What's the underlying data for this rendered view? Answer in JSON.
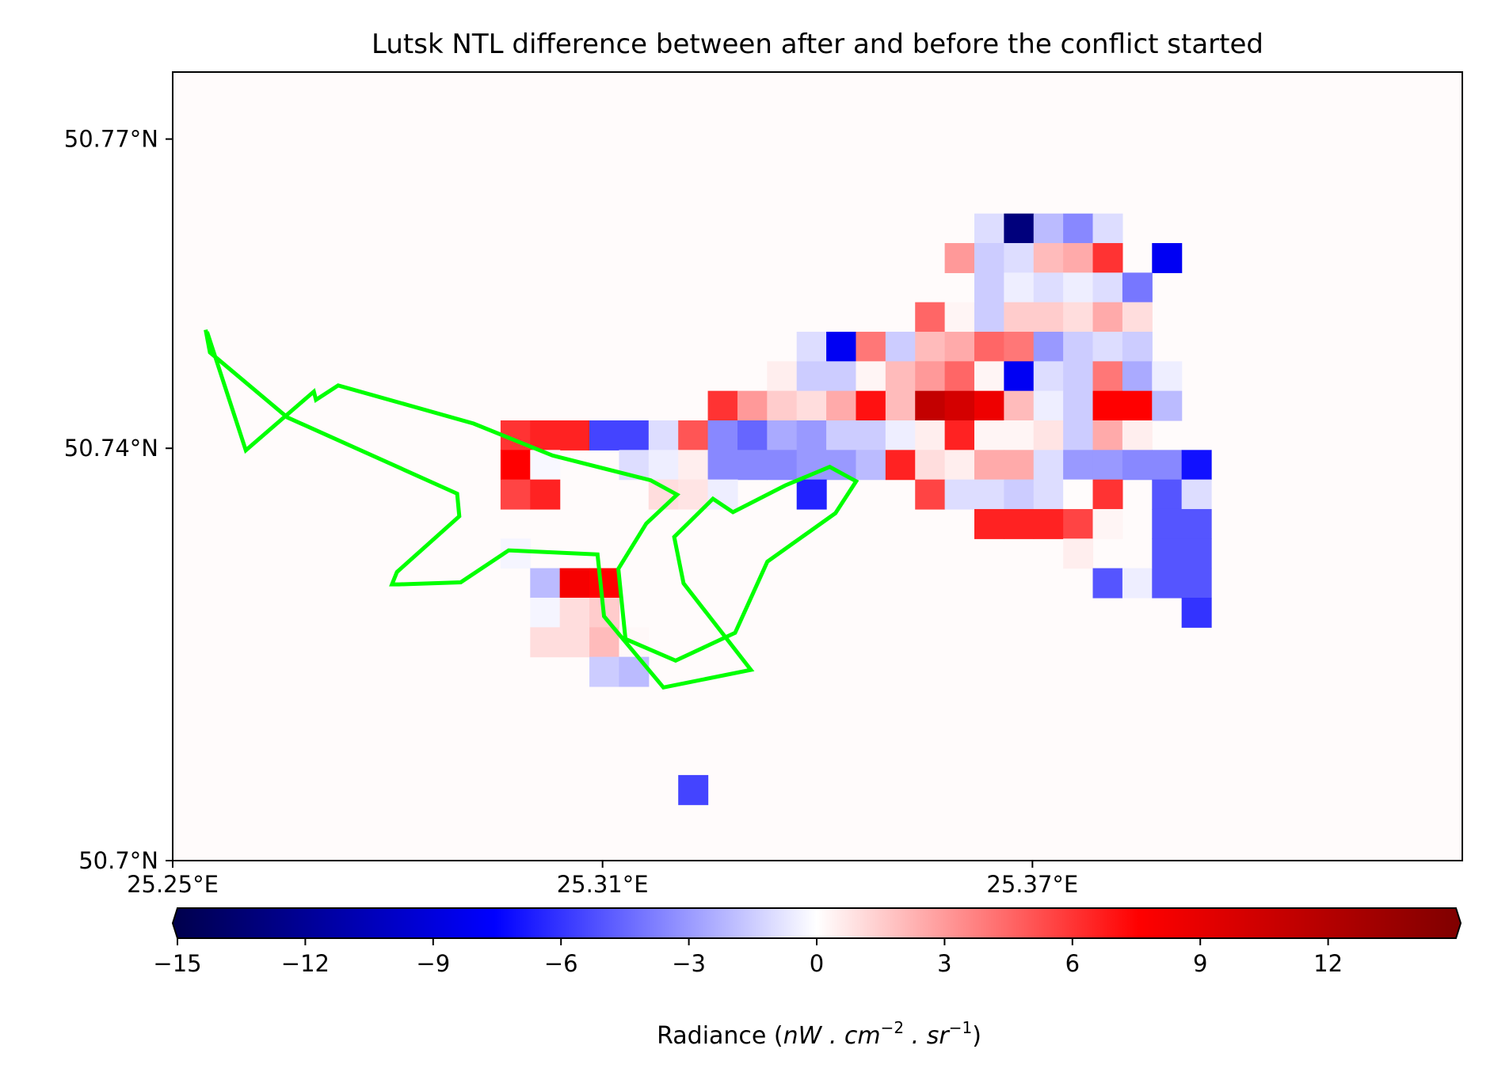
{
  "chart_data": {
    "type": "heatmap",
    "title": "Lutsk NTL difference between after and before the conflict started",
    "xlabel": "",
    "ylabel": "",
    "x_ticks": [
      {
        "value": 25.25,
        "label": "25.25°E"
      },
      {
        "value": 25.31,
        "label": "25.31°E"
      },
      {
        "value": 25.37,
        "label": "25.37°E"
      }
    ],
    "y_ticks": [
      {
        "value": 50.77,
        "label": "50.77°N"
      },
      {
        "value": 50.74,
        "label": "50.74°N"
      },
      {
        "value": 50.7,
        "label": "50.7°N"
      }
    ],
    "xlim": [
      25.25,
      25.43
    ],
    "ylim": [
      50.7,
      50.7765
    ],
    "grid": false,
    "colorbar": {
      "label_prefix": "Radiance (",
      "label_math": "nW . cm",
      "label_sup1": "−2",
      "label_mid": " . sr",
      "label_sup2": "−1",
      "label_suffix": ")",
      "vmin": -15,
      "vmax": 15,
      "extend": "both",
      "colormap": "seismic",
      "ticks": [
        {
          "value": -15,
          "label": "−15"
        },
        {
          "value": -12,
          "label": "−12"
        },
        {
          "value": -9,
          "label": "−9"
        },
        {
          "value": -6,
          "label": "−6"
        },
        {
          "value": -3,
          "label": "−3"
        },
        {
          "value": 0,
          "label": "0"
        },
        {
          "value": 3,
          "label": "3"
        },
        {
          "value": 6,
          "label": "6"
        },
        {
          "value": 9,
          "label": "9"
        },
        {
          "value": 12,
          "label": "12"
        }
      ]
    },
    "grid_cell": {
      "x0": 25.2503,
      "dx": 0.004133,
      "y0": 50.6997,
      "dy": 0.002867
    },
    "cells": [
      [
        27,
        4,
        -1
      ],
      [
        28,
        4,
        -13
      ],
      [
        29,
        4,
        -2
      ],
      [
        30,
        4,
        -3.5
      ],
      [
        31,
        4,
        -1
      ],
      [
        26,
        5,
        3
      ],
      [
        27,
        5,
        -1.5
      ],
      [
        28,
        5,
        -1
      ],
      [
        29,
        5,
        2
      ],
      [
        30,
        5,
        2.5
      ],
      [
        31,
        5,
        6
      ],
      [
        33,
        5,
        -8
      ],
      [
        27,
        6,
        -1.5
      ],
      [
        28,
        6,
        -0.5
      ],
      [
        29,
        6,
        -1
      ],
      [
        30,
        6,
        -0.5
      ],
      [
        31,
        6,
        -1
      ],
      [
        32,
        6,
        -4
      ],
      [
        25,
        7,
        4.5
      ],
      [
        26,
        7,
        0.3
      ],
      [
        27,
        7,
        -1.5
      ],
      [
        28,
        7,
        1.5
      ],
      [
        29,
        7,
        1.5
      ],
      [
        30,
        7,
        1
      ],
      [
        31,
        7,
        2.5
      ],
      [
        32,
        7,
        1
      ],
      [
        21,
        8,
        -1
      ],
      [
        22,
        8,
        -8
      ],
      [
        23,
        8,
        4
      ],
      [
        24,
        8,
        -1.5
      ],
      [
        25,
        8,
        2
      ],
      [
        26,
        8,
        2.5
      ],
      [
        27,
        8,
        4.5
      ],
      [
        28,
        8,
        4
      ],
      [
        29,
        8,
        -3
      ],
      [
        30,
        8,
        -1.5
      ],
      [
        31,
        8,
        -1
      ],
      [
        32,
        8,
        -1.5
      ],
      [
        20,
        9,
        0.5
      ],
      [
        21,
        9,
        -1.5
      ],
      [
        22,
        9,
        -1.5
      ],
      [
        23,
        9,
        0.3
      ],
      [
        24,
        9,
        2
      ],
      [
        25,
        9,
        3
      ],
      [
        26,
        9,
        4.5
      ],
      [
        27,
        9,
        0.3
      ],
      [
        28,
        9,
        -8
      ],
      [
        29,
        9,
        -1
      ],
      [
        30,
        9,
        -1.5
      ],
      [
        31,
        9,
        4
      ],
      [
        32,
        9,
        -2.5
      ],
      [
        33,
        9,
        -0.5
      ],
      [
        18,
        10,
        6
      ],
      [
        19,
        10,
        3
      ],
      [
        20,
        10,
        1.5
      ],
      [
        21,
        10,
        1
      ],
      [
        22,
        10,
        2.5
      ],
      [
        23,
        10,
        7
      ],
      [
        24,
        10,
        2
      ],
      [
        25,
        10,
        11
      ],
      [
        26,
        10,
        10
      ],
      [
        27,
        10,
        8.5
      ],
      [
        28,
        10,
        2
      ],
      [
        29,
        10,
        -0.5
      ],
      [
        30,
        10,
        -1.5
      ],
      [
        31,
        10,
        7.5
      ],
      [
        32,
        10,
        7.5
      ],
      [
        33,
        10,
        -2
      ],
      [
        11,
        11,
        6
      ],
      [
        12,
        11,
        6.5
      ],
      [
        13,
        11,
        6.5
      ],
      [
        14,
        11,
        -5.5
      ],
      [
        15,
        11,
        -5.5
      ],
      [
        16,
        11,
        -1
      ],
      [
        17,
        11,
        5
      ],
      [
        18,
        11,
        -3.5
      ],
      [
        19,
        11,
        -4.5
      ],
      [
        20,
        11,
        -2.5
      ],
      [
        21,
        11,
        -3
      ],
      [
        22,
        11,
        -1.5
      ],
      [
        23,
        11,
        -1.5
      ],
      [
        24,
        11,
        -0.5
      ],
      [
        25,
        11,
        0.5
      ],
      [
        26,
        11,
        6.5
      ],
      [
        27,
        11,
        0.3
      ],
      [
        28,
        11,
        0.3
      ],
      [
        29,
        11,
        0.8
      ],
      [
        30,
        11,
        -1.5
      ],
      [
        31,
        11,
        2.5
      ],
      [
        32,
        11,
        0.5
      ],
      [
        11,
        12,
        7.5
      ],
      [
        12,
        12,
        -0.2
      ],
      [
        15,
        12,
        -1
      ],
      [
        16,
        12,
        -0.5
      ],
      [
        17,
        12,
        0.5
      ],
      [
        18,
        12,
        -3.5
      ],
      [
        19,
        12,
        -3.5
      ],
      [
        20,
        12,
        -3.5
      ],
      [
        21,
        12,
        -3
      ],
      [
        22,
        12,
        -3
      ],
      [
        23,
        12,
        -2
      ],
      [
        24,
        12,
        6.5
      ],
      [
        25,
        12,
        1
      ],
      [
        26,
        12,
        0.5
      ],
      [
        27,
        12,
        2.5
      ],
      [
        28,
        12,
        2.5
      ],
      [
        29,
        12,
        -1
      ],
      [
        30,
        12,
        -3
      ],
      [
        31,
        12,
        -3
      ],
      [
        32,
        12,
        -3.5
      ],
      [
        33,
        12,
        -3.5
      ],
      [
        34,
        12,
        -7
      ],
      [
        11,
        13,
        5.5
      ],
      [
        12,
        13,
        6.5
      ],
      [
        16,
        13,
        1
      ],
      [
        17,
        13,
        0.8
      ],
      [
        18,
        13,
        -0.5
      ],
      [
        21,
        13,
        -6.5
      ],
      [
        25,
        13,
        5.5
      ],
      [
        26,
        13,
        -1
      ],
      [
        27,
        13,
        -1
      ],
      [
        28,
        13,
        -1.5
      ],
      [
        29,
        13,
        -1
      ],
      [
        30,
        13,
        0.1
      ],
      [
        31,
        13,
        6
      ],
      [
        33,
        13,
        -5
      ],
      [
        34,
        13,
        -1
      ],
      [
        27,
        14,
        6.5
      ],
      [
        28,
        14,
        6.5
      ],
      [
        29,
        14,
        6.5
      ],
      [
        30,
        14,
        5.5
      ],
      [
        31,
        14,
        0.3
      ],
      [
        33,
        14,
        -5
      ],
      [
        34,
        14,
        -5
      ],
      [
        11,
        15,
        -0.3
      ],
      [
        30,
        15,
        0.5
      ],
      [
        33,
        15,
        -5
      ],
      [
        34,
        15,
        -5
      ],
      [
        12,
        16,
        -2
      ],
      [
        13,
        16,
        8
      ],
      [
        14,
        16,
        7.5
      ],
      [
        31,
        16,
        -5
      ],
      [
        32,
        16,
        -0.5
      ],
      [
        33,
        16,
        -5
      ],
      [
        34,
        16,
        -5
      ],
      [
        12,
        17,
        -0.3
      ],
      [
        13,
        17,
        1
      ],
      [
        14,
        17,
        1.5
      ],
      [
        34,
        17,
        -6
      ],
      [
        12,
        18,
        1
      ],
      [
        13,
        18,
        1
      ],
      [
        14,
        18,
        2
      ],
      [
        15,
        18,
        0.2
      ],
      [
        14,
        19,
        -1.5
      ],
      [
        15,
        19,
        -2
      ],
      [
        17,
        23,
        -5.5
      ]
    ],
    "boundary_lines": [
      {
        "name": "",
        "color": "#00ff00",
        "points": [
          [
            25.2546,
            50.7515
          ],
          [
            25.2552,
            50.7493
          ],
          [
            25.266,
            50.743
          ],
          [
            25.2897,
            50.7356
          ],
          [
            25.29,
            50.7334
          ],
          [
            25.2813,
            50.728
          ],
          [
            25.2806,
            50.7268
          ],
          [
            25.2816,
            50.7268
          ],
          [
            25.2902,
            50.727
          ],
          [
            25.2969,
            50.7301
          ],
          [
            25.3093,
            50.7297
          ],
          [
            25.3102,
            50.7237
          ],
          [
            25.3185,
            50.7168
          ],
          [
            25.3307,
            50.7185
          ],
          [
            25.3213,
            50.7269
          ],
          [
            25.32,
            50.7314
          ],
          [
            25.3254,
            50.7351
          ],
          [
            25.3282,
            50.7338
          ],
          [
            25.3355,
            50.7364
          ],
          [
            25.3417,
            50.7382
          ],
          [
            25.3454,
            50.7368
          ],
          [
            25.3425,
            50.7337
          ],
          [
            25.333,
            50.729
          ],
          [
            25.3285,
            50.7221
          ],
          [
            25.3202,
            50.7194
          ],
          [
            25.3132,
            50.7215
          ],
          [
            25.3122,
            50.7283
          ],
          [
            25.3161,
            50.7327
          ],
          [
            25.3204,
            50.7355
          ],
          [
            25.3167,
            50.7369
          ],
          [
            25.303,
            50.7393
          ],
          [
            25.292,
            50.7424
          ],
          [
            25.2731,
            50.7461
          ],
          [
            25.27,
            50.7447
          ],
          [
            25.2697,
            50.7455
          ],
          [
            25.2602,
            50.7398
          ],
          [
            25.2548,
            50.7513
          ]
        ]
      }
    ]
  }
}
